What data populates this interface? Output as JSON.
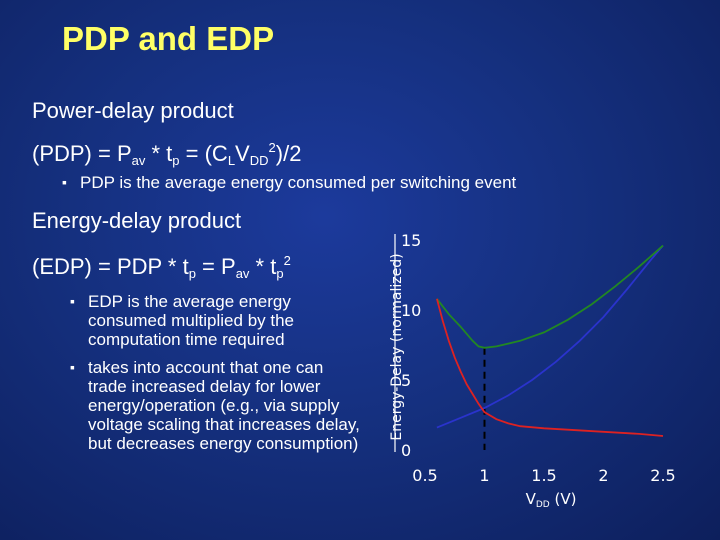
{
  "slide": {
    "title": "PDP and EDP",
    "pdp_heading": "Power-delay product",
    "pdp_formula": {
      "lead": "(PDP) = P",
      "sub1": "av",
      "mid": " * t",
      "sub2": "p",
      "eq": " = (C",
      "sub3": "L",
      "v": "V",
      "sub4": "DD",
      "sup": "2",
      "tail": ")/2"
    },
    "pdp_bullet": "PDP is the average energy consumed per switching event",
    "edp_heading": "Energy-delay product",
    "edp_formula": {
      "lead": "(EDP) = PDP * t",
      "sub1": "p",
      "mid": " = P",
      "sub2": "av",
      "mid2": " * t",
      "sub3": "p",
      "sup": "2"
    },
    "edp_bullets": [
      {
        "lines": [
          "EDP is the average energy",
          "consumed multiplied by the",
          "computation time required"
        ]
      },
      {
        "lines": [
          "takes into account that one can",
          "trade increased delay for lower",
          "energy/operation (e.g., via supply",
          "voltage scaling that increases delay,",
          "but decreases energy consumption)"
        ]
      }
    ],
    "bullet_mark": "▪"
  },
  "chart_data": {
    "type": "line",
    "ylabel": "Energy-Delay (normalized)",
    "xlabel_main": "V",
    "xlabel_sub": "DD",
    "xlabel_unit": " (V)",
    "xlim": [
      0.5,
      2.5
    ],
    "ylim": [
      0,
      15
    ],
    "x_ticks": [
      "0.5",
      "1",
      "1.5",
      "2",
      "2.5"
    ],
    "y_ticks": [
      "0",
      "5",
      "10",
      "15"
    ],
    "marker_x": 1.0,
    "series": [
      {
        "color": "#2a33cc",
        "x": [
          0.6,
          0.8,
          1.0,
          1.2,
          1.4,
          1.6,
          1.8,
          2.0,
          2.2,
          2.4,
          2.5
        ],
        "y": [
          1.6,
          2.3,
          3.0,
          3.9,
          5.0,
          6.3,
          7.8,
          9.5,
          11.5,
          13.6,
          14.6
        ]
      },
      {
        "color": "#228822",
        "x": [
          0.6,
          0.7,
          0.8,
          0.9,
          0.95,
          1.0,
          1.1,
          1.3,
          1.5,
          1.7,
          1.9,
          2.1,
          2.3,
          2.5
        ],
        "y": [
          10.8,
          9.7,
          8.8,
          7.8,
          7.4,
          7.3,
          7.4,
          7.8,
          8.4,
          9.3,
          10.4,
          11.7,
          13.1,
          14.6
        ]
      },
      {
        "color": "#dd2222",
        "x": [
          0.6,
          0.65,
          0.7,
          0.75,
          0.8,
          0.85,
          0.9,
          0.95,
          1.0,
          1.1,
          1.2,
          1.3,
          1.5,
          1.7,
          2.0,
          2.3,
          2.5
        ],
        "y": [
          10.8,
          9.2,
          7.8,
          6.6,
          5.6,
          4.7,
          4.0,
          3.3,
          2.7,
          2.2,
          1.9,
          1.7,
          1.55,
          1.45,
          1.3,
          1.15,
          1.0
        ]
      }
    ]
  }
}
